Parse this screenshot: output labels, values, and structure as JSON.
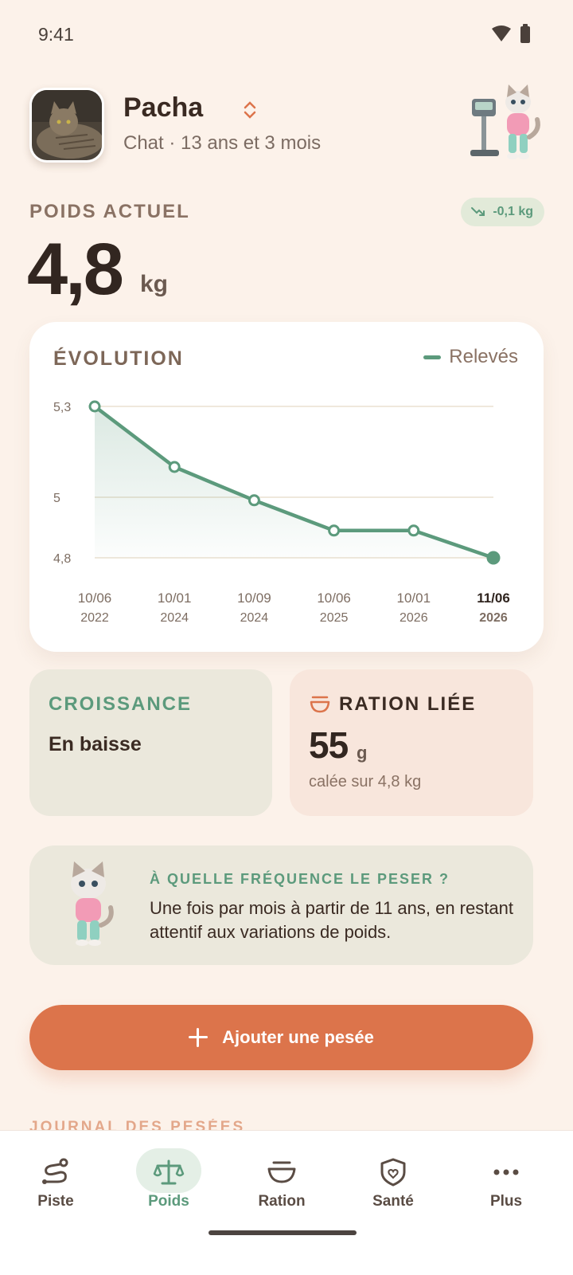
{
  "status": {
    "time": "9:41"
  },
  "pet": {
    "name": "Pacha",
    "subtitle": "Chat · 13 ans et 3 mois"
  },
  "weight": {
    "label": "POIDS ACTUEL",
    "value": "4,8",
    "unit": "kg",
    "delta": "-0,1 kg"
  },
  "chart": {
    "title": "ÉVOLUTION",
    "legend": "Relevés"
  },
  "chart_data": {
    "type": "line",
    "title": "ÉVOLUTION",
    "series": [
      {
        "name": "Relevés",
        "values": [
          5.3,
          5.1,
          4.99,
          4.89,
          4.89,
          4.8
        ]
      }
    ],
    "x": [
      {
        "date": "10/06",
        "year": "2022"
      },
      {
        "date": "10/01",
        "year": "2024"
      },
      {
        "date": "10/09",
        "year": "2024"
      },
      {
        "date": "10/06",
        "year": "2025"
      },
      {
        "date": "10/01",
        "year": "2026"
      },
      {
        "date": "11/06",
        "year": "2026"
      }
    ],
    "yticks": [
      "5,3",
      "5",
      "4,8"
    ],
    "ylim": [
      4.8,
      5.3
    ],
    "grid": true,
    "legend_position": "top-right",
    "colors": {
      "line": "#5c9a7c"
    }
  },
  "growth": {
    "title": "CROISSANCE",
    "value": "En baisse"
  },
  "ration": {
    "title": "RATION LIÉE",
    "value": "55",
    "unit": "g",
    "sub": "calée sur 4,8 kg"
  },
  "tip": {
    "title": "À QUELLE FRÉQUENCE LE PESER ?",
    "text": "Une fois par mois à partir de 11 ans, en restant attentif aux variations de poids."
  },
  "actions": {
    "add_label": "Ajouter une pesée"
  },
  "journal": {
    "label": "JOURNAL DES PESÉES"
  },
  "nav": {
    "items": [
      {
        "label": "Piste",
        "icon": "route-icon"
      },
      {
        "label": "Poids",
        "icon": "scale-icon",
        "active": true
      },
      {
        "label": "Ration",
        "icon": "bowl-icon"
      },
      {
        "label": "Santé",
        "icon": "health-shield-icon"
      },
      {
        "label": "Plus",
        "icon": "more-icon"
      }
    ]
  },
  "colors": {
    "accent": "#dc744b",
    "green": "#5c9a7c",
    "background": "#fcf2ea"
  }
}
